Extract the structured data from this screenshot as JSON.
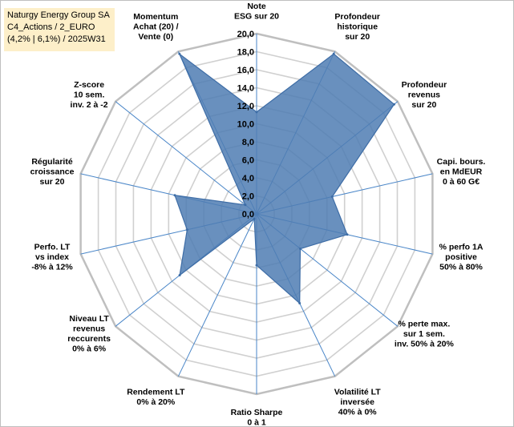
{
  "info_box": {
    "line1": "Naturgy Energy Group SA",
    "line2": "C4_Actions / 2_EURO",
    "line3": "(4,2% | 6,1%) / 2025W31"
  },
  "colors": {
    "fill": "#4f7db3",
    "stroke": "#3e6da6",
    "grid": "#d0d0d0",
    "axis": "#4a86c8",
    "outer": "#bfbfbf"
  },
  "chart_data": {
    "type": "radar",
    "rlim": [
      0,
      20
    ],
    "tick_labels": [
      "0,0",
      "2,0",
      "4,0",
      "6,0",
      "8,0",
      "10,0",
      "12,0",
      "14,0",
      "16,0",
      "18,0",
      "20,0"
    ],
    "categories": [
      [
        "Note",
        "ESG sur 20"
      ],
      [
        "Profondeur",
        "historique",
        "sur 20"
      ],
      [
        "Profondeur",
        "revenus",
        "sur 20"
      ],
      [
        "Capi. bours.",
        "en MdEUR",
        "0 à 60 G€"
      ],
      [
        "% perfo 1A",
        "positive",
        "50% à 80%"
      ],
      [
        "% perte max.",
        "sur 1 sem.",
        "inv. 50% à 20%"
      ],
      [
        "Volatilité LT",
        "inversée",
        "40% à 0%"
      ],
      [
        "Ratio Sharpe",
        "0 à 1"
      ],
      [
        "Rendement LT",
        "0% à 20%"
      ],
      [
        "Niveau LT",
        "revenus",
        "reccurents",
        "0% à 6%"
      ],
      [
        "Perfo. LT",
        "vs index",
        "-8% à 12%"
      ],
      [
        "Régularité",
        "croissance",
        "sur 20"
      ],
      [
        "Z-score",
        "10 sem.",
        "inv. 2 à -2"
      ],
      [
        "Momentum",
        "Achat (20) /",
        "Vente (0)"
      ]
    ],
    "values": [
      11.3,
      19.7,
      19.5,
      8.6,
      10.3,
      6.2,
      11.0,
      5.7,
      0.6,
      10.9,
      7.9,
      9.3,
      1.6,
      19.7
    ],
    "grid": true,
    "legend": "none"
  }
}
